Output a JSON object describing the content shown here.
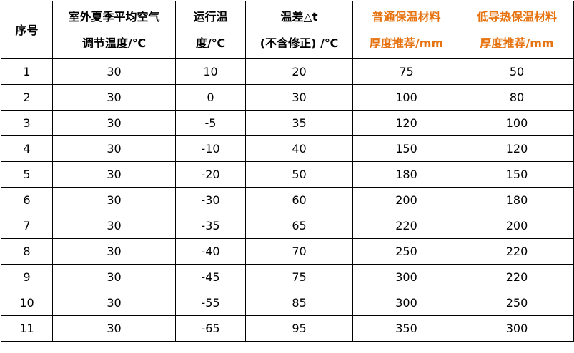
{
  "table": {
    "headers": [
      {
        "lines": [
          "序号"
        ],
        "accent": false
      },
      {
        "lines": [
          "室外夏季平均空气",
          "调节温度/℃"
        ],
        "accent": false
      },
      {
        "lines": [
          "运行温",
          "度/℃"
        ],
        "accent": false
      },
      {
        "lines": [
          "温差△t",
          "(不含修正) /℃"
        ],
        "accent": false
      },
      {
        "lines": [
          "普通保温材料",
          "厚度推荐/mm"
        ],
        "accent": true
      },
      {
        "lines": [
          "低导热保温材料",
          "厚度推荐/mm"
        ],
        "accent": true
      }
    ],
    "rows": [
      [
        "1",
        "30",
        "10",
        "20",
        "75",
        "50"
      ],
      [
        "2",
        "30",
        "0",
        "30",
        "100",
        "80"
      ],
      [
        "3",
        "30",
        "-5",
        "35",
        "120",
        "100"
      ],
      [
        "4",
        "30",
        "-10",
        "40",
        "150",
        "120"
      ],
      [
        "5",
        "30",
        "-20",
        "50",
        "180",
        "150"
      ],
      [
        "6",
        "30",
        "-30",
        "60",
        "200",
        "180"
      ],
      [
        "7",
        "30",
        "-35",
        "65",
        "220",
        "200"
      ],
      [
        "8",
        "30",
        "-40",
        "70",
        "250",
        "220"
      ],
      [
        "9",
        "30",
        "-45",
        "75",
        "300",
        "220"
      ],
      [
        "10",
        "30",
        "-55",
        "85",
        "300",
        "250"
      ],
      [
        "11",
        "30",
        "-65",
        "95",
        "350",
        "300"
      ]
    ]
  },
  "colors": {
    "accent_header": "#e6730f",
    "border": "#000000",
    "text": "#000000"
  }
}
